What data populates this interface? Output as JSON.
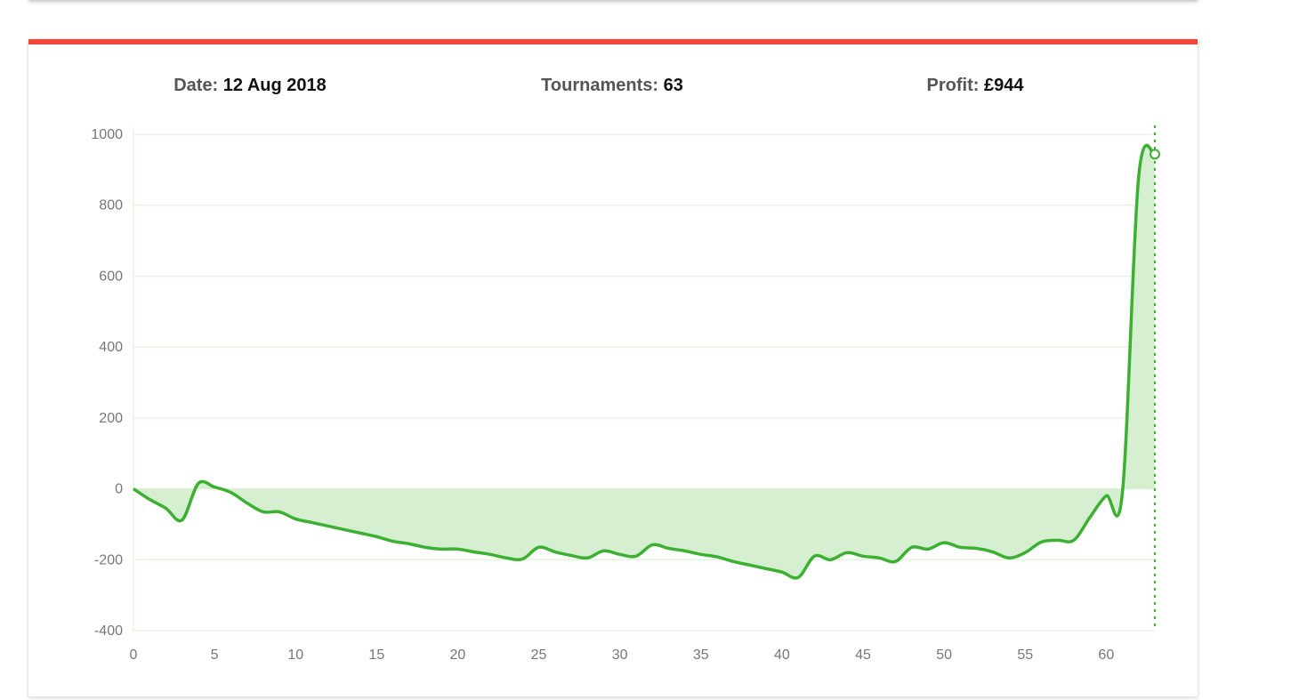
{
  "summary": {
    "date_label": "Date:",
    "date_value": "12 Aug 2018",
    "tournaments_label": "Tournaments:",
    "tournaments_value": "63",
    "profit_label": "Profit:",
    "profit_value": "£944"
  },
  "colors": {
    "accent_bar": "#f2473a",
    "line": "#3cb031",
    "area_fill": "#d6efd1",
    "grid": "#def2da"
  },
  "chart_data": {
    "type": "area",
    "x": [
      0,
      1,
      2,
      3,
      4,
      5,
      6,
      7,
      8,
      9,
      10,
      11,
      12,
      13,
      14,
      15,
      16,
      17,
      18,
      19,
      20,
      21,
      22,
      23,
      24,
      25,
      26,
      27,
      28,
      29,
      30,
      31,
      32,
      33,
      34,
      35,
      36,
      37,
      38,
      39,
      40,
      41,
      42,
      43,
      44,
      45,
      46,
      47,
      48,
      49,
      50,
      51,
      52,
      53,
      54,
      55,
      56,
      57,
      58,
      59,
      60,
      61,
      62,
      63
    ],
    "values": [
      0,
      -30,
      -55,
      -88,
      15,
      5,
      -10,
      -40,
      -65,
      -65,
      -85,
      -95,
      -105,
      -115,
      -125,
      -135,
      -148,
      -155,
      -165,
      -170,
      -170,
      -178,
      -185,
      -195,
      -198,
      -165,
      -178,
      -188,
      -195,
      -175,
      -185,
      -190,
      -158,
      -168,
      -175,
      -185,
      -192,
      -205,
      -215,
      -225,
      -235,
      -250,
      -190,
      -200,
      -180,
      -190,
      -195,
      -205,
      -165,
      -170,
      -152,
      -165,
      -168,
      -178,
      -195,
      -180,
      -150,
      -145,
      -145,
      -80,
      -20,
      -10,
      880,
      944
    ],
    "title": "",
    "xlabel": "",
    "ylabel": "",
    "xlim": [
      0,
      63
    ],
    "ylim": [
      -400,
      1000
    ],
    "x_ticks": [
      0,
      5,
      10,
      15,
      20,
      25,
      30,
      35,
      40,
      45,
      50,
      55,
      60
    ],
    "y_ticks": [
      1000,
      800,
      600,
      400,
      200,
      0,
      -200,
      -400
    ],
    "grid": true,
    "highlighted_point": {
      "x": 63,
      "y": 944
    }
  }
}
